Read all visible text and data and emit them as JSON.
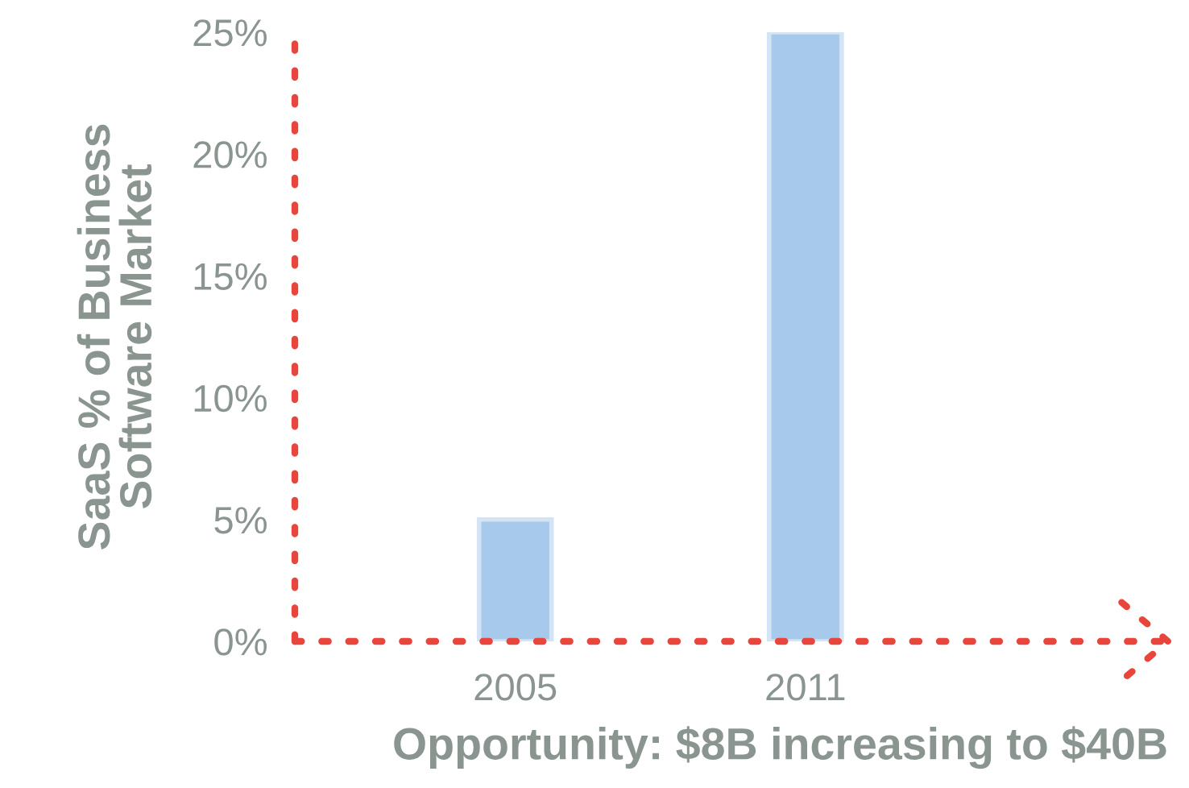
{
  "chart_data": {
    "type": "bar",
    "ylabel": "SaaS % of Business\nSoftware Market",
    "xlabel": "Opportunity: $8B increasing to $40B",
    "categories": [
      "2005",
      "2011"
    ],
    "values": [
      5,
      25
    ],
    "color": "#a7c9eb",
    "ylim": [
      0,
      25
    ],
    "yticks": [
      {
        "value": 0,
        "label": "0%"
      },
      {
        "value": 5,
        "label": "5%"
      },
      {
        "value": 10,
        "label": "10%"
      },
      {
        "value": 15,
        "label": "15%"
      },
      {
        "value": 20,
        "label": "20%"
      },
      {
        "value": 25,
        "label": "25%"
      }
    ],
    "grid": false,
    "legend": false
  }
}
